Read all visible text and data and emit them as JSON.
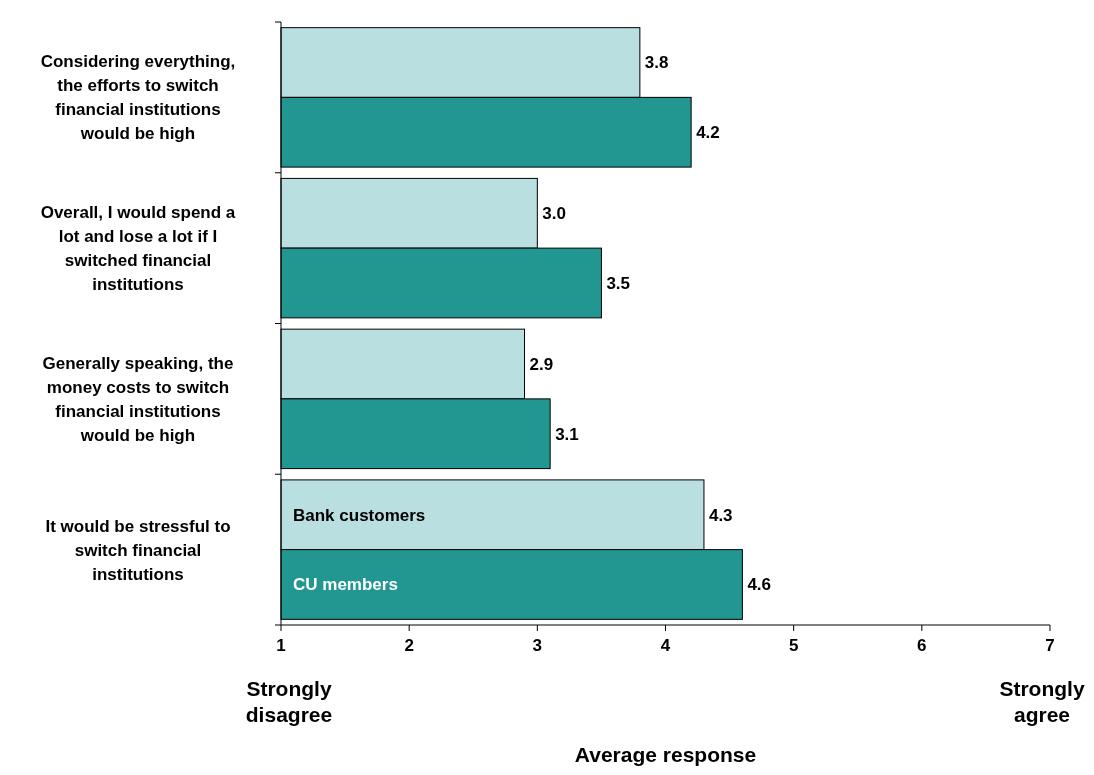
{
  "chart_data": {
    "type": "bar",
    "orientation": "horizontal",
    "categories": [
      "Considering everything, the efforts to switch financial institutions would be high",
      "Overall, I would spend a lot and lose a lot if I switched financial institutions",
      "Generally speaking, the money costs to switch financial institutions would be high",
      "It would be stressful to switch financial institutions"
    ],
    "series": [
      {
        "name": "Bank customers",
        "color": "#b9dfe1",
        "values": [
          3.8,
          3.0,
          2.9,
          4.3
        ],
        "value_labels": [
          "3.8",
          "3.0",
          "2.9",
          "4.3"
        ]
      },
      {
        "name": "CU members",
        "color": "#229792",
        "values": [
          4.2,
          3.5,
          3.1,
          4.6
        ],
        "value_labels": [
          "4.2",
          "3.5",
          "3.1",
          "4.6"
        ]
      }
    ],
    "xlim": [
      1,
      7
    ],
    "xticks": [
      1,
      2,
      3,
      4,
      5,
      6,
      7
    ],
    "xlabel": "Average response",
    "annotations": [
      "Strongly disagree",
      "Strongly agree"
    ],
    "legend": false,
    "grid": false
  }
}
